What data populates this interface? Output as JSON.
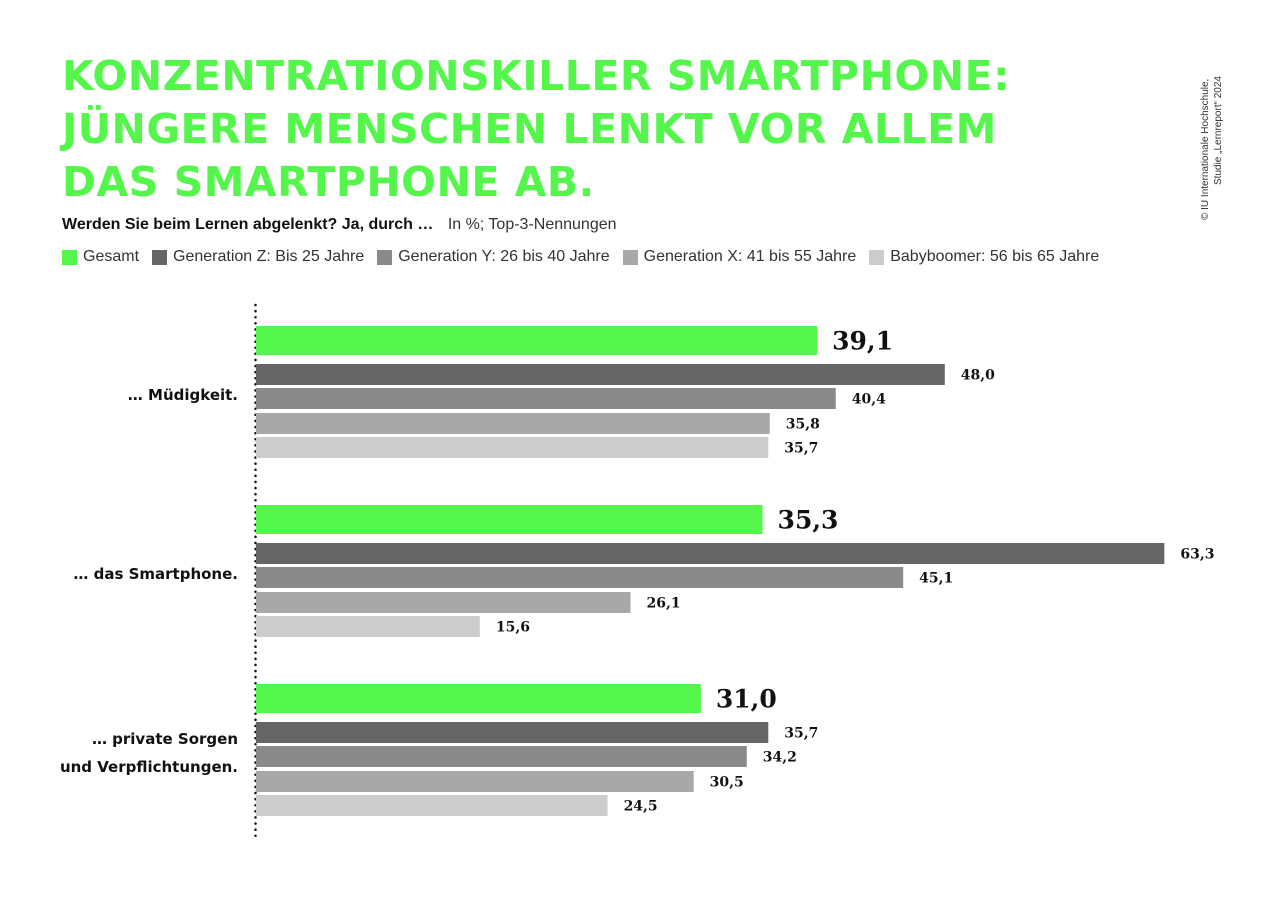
{
  "title_lines": [
    "KONZENTRATIONSKILLER SMARTPHONE:",
    "JÜNGERE MENSCHEN LENKT VOR ALLEM",
    "DAS SMARTPHONE AB."
  ],
  "question": "Werden Sie beim Lernen abgelenkt? Ja, durch …",
  "unit_note": "In %; Top-3-Nennungen",
  "copyright_lines": [
    "© IU Internationale Hochschule,",
    "Studie „Lernreport“ 2024"
  ],
  "colors": {
    "accent": "#55f64b",
    "series": [
      "#55f64b",
      "#666666",
      "#8a8a8a",
      "#a8a8a8",
      "#cccccc"
    ]
  },
  "chart_data": {
    "type": "bar",
    "orientation": "horizontal",
    "categories": [
      [
        "… Müdigkeit."
      ],
      [
        "… das Smartphone."
      ],
      [
        "… private Sorgen",
        "und Verpflichtungen."
      ]
    ],
    "series": [
      {
        "name": "Gesamt",
        "values": [
          39.1,
          35.3,
          31.0
        ],
        "labels": [
          "39,1",
          "35,3",
          "31,0"
        ]
      },
      {
        "name": "Generation Z: Bis 25 Jahre",
        "values": [
          48.0,
          63.3,
          35.7
        ],
        "labels": [
          "48,0",
          "63,3",
          "35,7"
        ]
      },
      {
        "name": "Generation Y: 26 bis 40 Jahre",
        "values": [
          40.4,
          45.1,
          34.2
        ],
        "labels": [
          "40,4",
          "45,1",
          "34,2"
        ]
      },
      {
        "name": "Generation X: 41 bis 55 Jahre",
        "values": [
          35.8,
          26.1,
          30.5
        ],
        "labels": [
          "35,8",
          "26,1",
          "30,5"
        ]
      },
      {
        "name": "Babyboomer: 56 bis 65 Jahre",
        "values": [
          35.7,
          15.6,
          24.5
        ],
        "labels": [
          "35,7",
          "15,6",
          "24,5"
        ]
      }
    ],
    "xlim": [
      0,
      63.3
    ],
    "grid": false,
    "legend": "top"
  }
}
